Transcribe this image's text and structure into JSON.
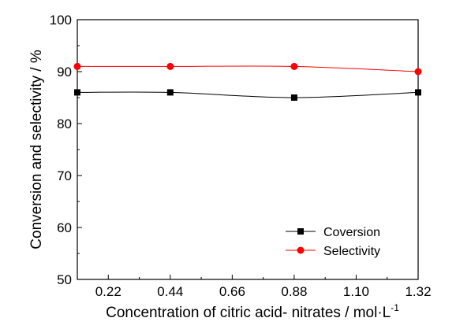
{
  "chart_data": {
    "type": "line",
    "title": "",
    "xlabel": "Concentration of citric acid- nitrates / mol·L",
    "xlabel_superscript": "-1",
    "ylabel": "Conversion and selectivity / %",
    "xlim": [
      0.11,
      1.32
    ],
    "ylim": [
      50,
      100
    ],
    "x_ticks": [
      "0.22",
      "0.44",
      "0.66",
      "0.88",
      "1.10",
      "1.32"
    ],
    "y_ticks": [
      "50",
      "60",
      "70",
      "80",
      "90",
      "100"
    ],
    "x": [
      0.11,
      0.44,
      0.88,
      1.32
    ],
    "series": [
      {
        "name": "Coversion",
        "values": [
          86,
          86,
          85,
          86
        ],
        "color": "#000000",
        "marker": "square"
      },
      {
        "name": "Selectivity",
        "values": [
          91,
          91,
          91,
          90
        ],
        "color": "#ff0000",
        "marker": "circle"
      }
    ],
    "grid": false,
    "legend_position": "bottom-right"
  }
}
